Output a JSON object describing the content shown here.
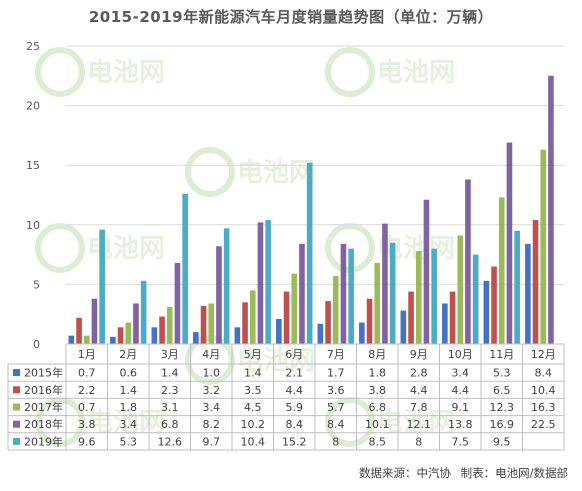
{
  "chart_data": {
    "type": "bar",
    "title": "2015-2019年新能源汽车月度销量趋势图（单位：万辆）",
    "categories": [
      "1月",
      "2月",
      "3月",
      "4月",
      "5月",
      "6月",
      "7月",
      "8月",
      "9月",
      "10月",
      "11月",
      "12月"
    ],
    "ylim": [
      0,
      25
    ],
    "yticks": [
      0,
      5,
      10,
      15,
      20,
      25
    ],
    "grid": true,
    "legend": "bottom-table",
    "series": [
      {
        "name": "2015年",
        "color": "#4472C4",
        "values": [
          0.7,
          0.6,
          1.4,
          1.0,
          1.4,
          2.1,
          1.7,
          1.8,
          2.8,
          3.4,
          5.3,
          8.4
        ],
        "labels": [
          "0.7",
          "0.6",
          "1.4",
          "1.0",
          "1.4",
          "2.1",
          "1.7",
          "1.8",
          "2.8",
          "3.4",
          "5.3",
          "8.4"
        ]
      },
      {
        "name": "2016年",
        "color": "#C0504D",
        "values": [
          2.2,
          1.4,
          2.3,
          3.2,
          3.5,
          4.4,
          3.6,
          3.8,
          4.4,
          4.4,
          6.5,
          10.4
        ],
        "labels": [
          "2.2",
          "1.4",
          "2.3",
          "3.2",
          "3.5",
          "4.4",
          "3.6",
          "3.8",
          "4.4",
          "4.4",
          "6.5",
          "10.4"
        ]
      },
      {
        "name": "2017年",
        "color": "#9BBB59",
        "values": [
          0.7,
          1.8,
          3.1,
          3.4,
          4.5,
          5.9,
          5.7,
          6.8,
          7.8,
          9.1,
          12.3,
          16.3
        ],
        "labels": [
          "0.7",
          "1.8",
          "3.1",
          "3.4",
          "4.5",
          "5.9",
          "5.7",
          "6.8",
          "7.8",
          "9.1",
          "12.3",
          "16.3"
        ]
      },
      {
        "name": "2018年",
        "color": "#8064A2",
        "values": [
          3.8,
          3.4,
          6.8,
          8.2,
          10.2,
          8.4,
          8.4,
          10.1,
          12.1,
          13.8,
          16.9,
          22.5
        ],
        "labels": [
          "3.8",
          "3.4",
          "6.8",
          "8.2",
          "10.2",
          "8.4",
          "8.4",
          "10.1",
          "12.1",
          "13.8",
          "16.9",
          "22.5"
        ]
      },
      {
        "name": "2019年",
        "color": "#4BACC6",
        "values": [
          9.6,
          5.3,
          12.6,
          9.7,
          10.4,
          15.2,
          8,
          8.5,
          8,
          7.5,
          9.5,
          null
        ],
        "labels": [
          "9.6",
          "5.3",
          "12.6",
          "9.7",
          "10.4",
          "15.2",
          "8",
          "8.5",
          "8",
          "7.5",
          "9.5",
          ""
        ]
      }
    ]
  },
  "source": {
    "label": "数据来源：中汽协",
    "credit": "制表：电池网/数据部"
  },
  "watermark": "电池网"
}
